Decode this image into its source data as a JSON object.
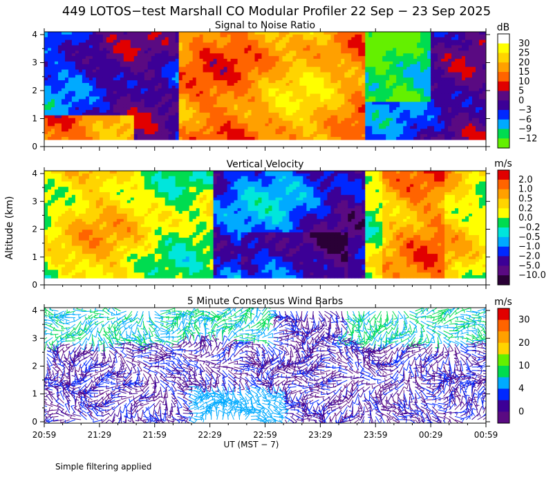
{
  "title": "449 LOTOS−test Marshall CO Modular Profiler 22 Sep − 23 Sep 2025",
  "footer_note": "Simple filtering applied",
  "chart_data": [
    {
      "type": "heatmap",
      "title": "Signal to Noise Ratio",
      "ylabel": "",
      "yticks": [
        "0",
        "1",
        "2",
        "3",
        "4"
      ],
      "ylim": [
        0,
        4.1
      ],
      "data_ylim": [
        0.25,
        4.1
      ],
      "colorbar_unit": "dB",
      "colorbar_labels": [
        "30",
        "25",
        "20",
        "15",
        "10",
        "5",
        "0",
        "−3",
        "−6",
        "−9",
        "−12"
      ],
      "colors": [
        "#ffffff",
        "#ffff00",
        "#ffd400",
        "#ffa000",
        "#ff6400",
        "#e10000",
        "#5a0a82",
        "#3c0096",
        "#0028ff",
        "#00aaff",
        "#00dc50",
        "#64f000"
      ]
    },
    {
      "type": "heatmap",
      "title": "Vertical Velocity",
      "ylabel": "Altitude (km)",
      "yticks": [
        "0",
        "1",
        "2",
        "3",
        "4"
      ],
      "ylim": [
        0,
        4.1
      ],
      "data_ylim": [
        0.25,
        4.1
      ],
      "colorbar_unit": "m/s",
      "colorbar_labels": [
        "2.0",
        "1.0",
        "0.5",
        "0.2",
        "0.0",
        "−0.2",
        "−0.5",
        "−1.0",
        "−2.0",
        "−5.0",
        "−10.0"
      ],
      "colors": [
        "#e10000",
        "#ff6400",
        "#ffa000",
        "#ffd400",
        "#ffff00",
        "#00dc50",
        "#00e6dc",
        "#00aaff",
        "#0028ff",
        "#3c0096",
        "#5a0a82",
        "#2a0036"
      ]
    },
    {
      "type": "wind_barbs",
      "title": "5 Minute Consensus Wind Barbs",
      "ylabel": "",
      "yticks": [
        "0",
        "1",
        "2",
        "3",
        "4"
      ],
      "ylim": [
        -0.05,
        4.1
      ],
      "colorbar_unit": "m/s",
      "colorbar_labels": [
        "30",
        "20",
        "10",
        "4",
        "0"
      ],
      "colors": [
        "#e10000",
        "#ff6400",
        "#ffa000",
        "#ffd400",
        "#64f000",
        "#00dc50",
        "#00aaff",
        "#0028ff",
        "#3c0096",
        "#5a0a82"
      ]
    }
  ],
  "x_axis": {
    "label": "UT  (MST − 7)",
    "ticks": [
      "20:59",
      "21:29",
      "21:59",
      "22:29",
      "22:59",
      "23:29",
      "23:59",
      "00:29",
      "00:59"
    ]
  }
}
